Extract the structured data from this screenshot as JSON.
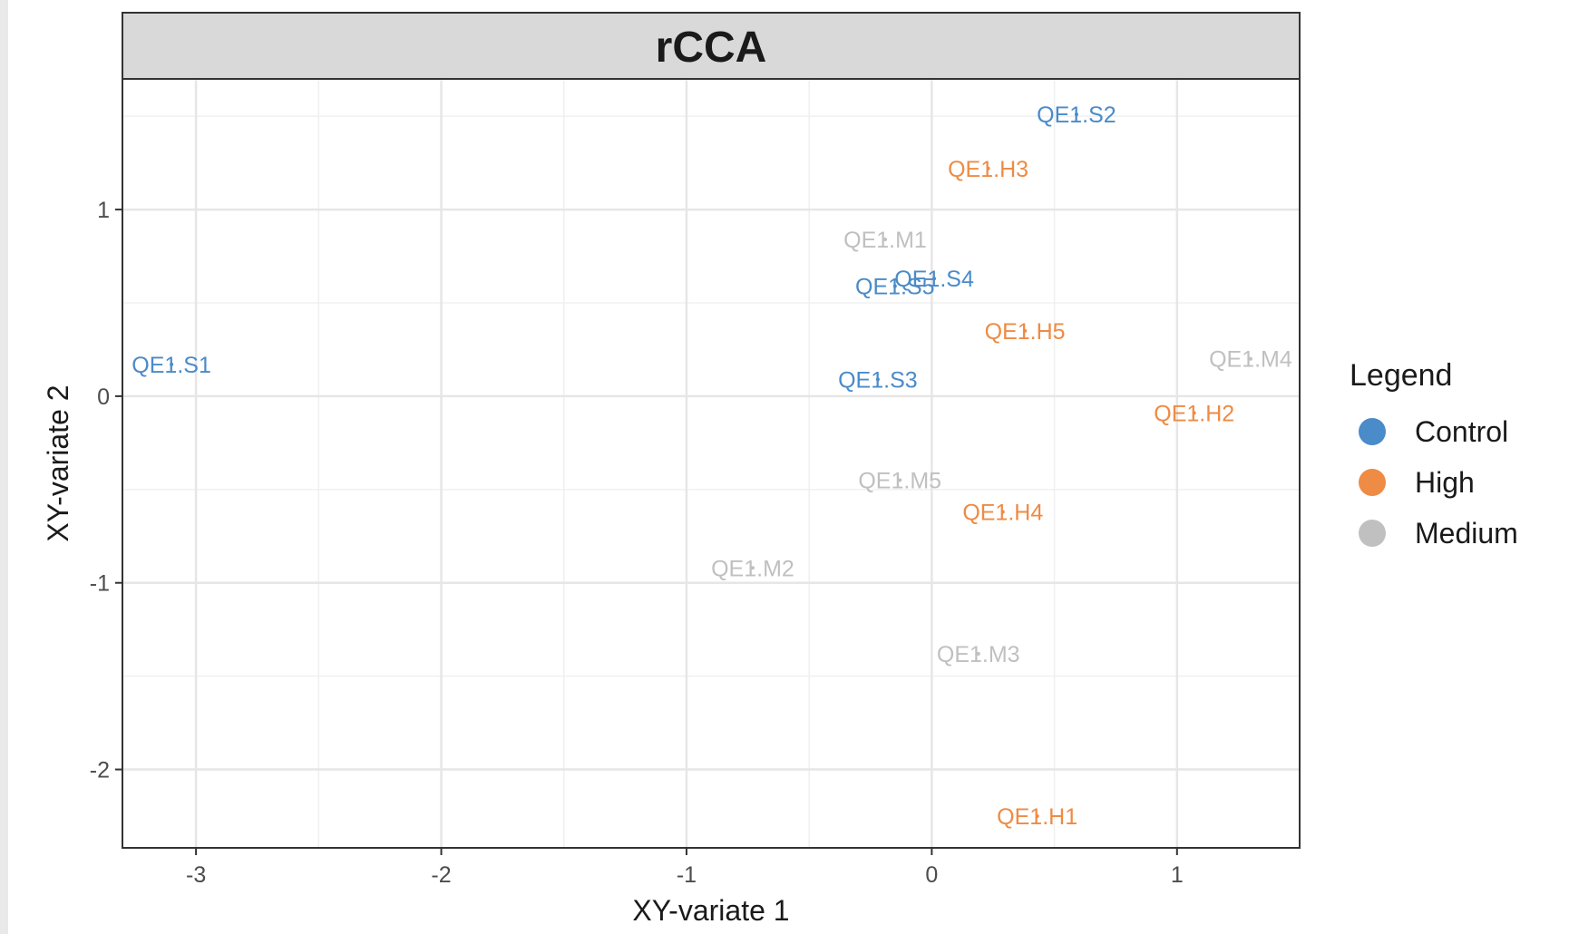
{
  "chart_data": {
    "type": "scatter",
    "title": "rCCA",
    "xlabel": "XY-variate 1",
    "ylabel": "XY-variate 2",
    "xlim": [
      -3.3,
      1.5
    ],
    "ylim": [
      -2.42,
      1.7
    ],
    "x_ticks": [
      -3,
      -2,
      -1,
      0,
      1
    ],
    "y_ticks": [
      -2,
      -1,
      0,
      1
    ],
    "grid": true,
    "legend": {
      "title": "Legend",
      "position": "right",
      "entries": [
        {
          "name": "Control",
          "color": "#4a8bc9"
        },
        {
          "name": "High",
          "color": "#ee8b45"
        },
        {
          "name": "Medium",
          "color": "#c0c0c0"
        }
      ]
    },
    "series": [
      {
        "name": "Control",
        "color": "#4a8bc9",
        "points": [
          {
            "label": "QE1.S1",
            "x": -3.1,
            "y": 0.17
          },
          {
            "label": "QE1.S2",
            "x": 0.59,
            "y": 1.51
          },
          {
            "label": "QE1.S3",
            "x": -0.22,
            "y": 0.09
          },
          {
            "label": "QE1.S4",
            "x": 0.01,
            "y": 0.63
          },
          {
            "label": "QE1.S5",
            "x": -0.15,
            "y": 0.59
          }
        ]
      },
      {
        "name": "High",
        "color": "#ee8b45",
        "points": [
          {
            "label": "QE1.H1",
            "x": 0.43,
            "y": -2.25
          },
          {
            "label": "QE1.H2",
            "x": 1.07,
            "y": -0.09
          },
          {
            "label": "QE1.H3",
            "x": 0.23,
            "y": 1.22
          },
          {
            "label": "QE1.H4",
            "x": 0.29,
            "y": -0.62
          },
          {
            "label": "QE1.H5",
            "x": 0.38,
            "y": 0.35
          }
        ]
      },
      {
        "name": "Medium",
        "color": "#c0c0c0",
        "points": [
          {
            "label": "QE1.M1",
            "x": -0.19,
            "y": 0.84
          },
          {
            "label": "QE1.M2",
            "x": -0.73,
            "y": -0.92
          },
          {
            "label": "QE1.M3",
            "x": 0.19,
            "y": -1.38
          },
          {
            "label": "QE1.M4",
            "x": 1.3,
            "y": 0.2
          },
          {
            "label": "QE1.M5",
            "x": -0.13,
            "y": -0.45
          }
        ]
      }
    ]
  }
}
